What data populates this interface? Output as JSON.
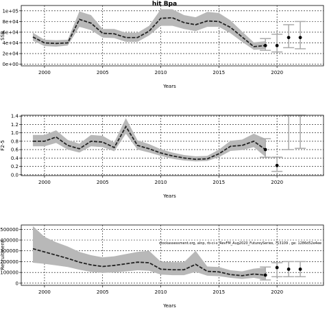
{
  "figure_title": "hit Bpa",
  "overlay_note": "stockassessment.org, alnp, rb-ci-x_RevFM_Aug2020_FutureySeries, ?13109 , ge: 1286d52e4ee",
  "colors": {
    "ribbon": "#b8b8b8",
    "line": "#222222",
    "ci_bar": "#aaaaaa",
    "point": "#000000",
    "grid": "#000000"
  },
  "chart_data": [
    {
      "type": "line",
      "title": "hit Bpa",
      "xlabel": "Years",
      "ylabel": "SSB",
      "xlim": [
        1998,
        2024
      ],
      "ylim": [
        -3000,
        110000
      ],
      "x_ticks": [
        2000,
        2005,
        2010,
        2015,
        2020
      ],
      "y_ticks": [
        0,
        20000,
        40000,
        60000,
        80000,
        100000
      ],
      "y_tick_labels": [
        "0e+00",
        "2e+04",
        "4e+04",
        "6e+04",
        "8e+04",
        "1e+05"
      ],
      "grid": true,
      "x": [
        1999,
        2000,
        2001,
        2002,
        2003,
        2004,
        2005,
        2006,
        2007,
        2008,
        2009,
        2010,
        2011,
        2012,
        2013,
        2014,
        2015,
        2016,
        2017,
        2018,
        2019
      ],
      "estimate": [
        51000,
        40000,
        39000,
        40000,
        84000,
        77000,
        58000,
        57000,
        50000,
        50000,
        62000,
        86000,
        87000,
        78000,
        74000,
        81000,
        80000,
        69000,
        51000,
        33000,
        35000
      ],
      "lower": [
        44000,
        34000,
        33000,
        35000,
        70000,
        64000,
        50000,
        49000,
        42000,
        42000,
        54000,
        72000,
        72000,
        66000,
        62000,
        70000,
        70000,
        58000,
        42000,
        27000,
        28000
      ],
      "upper": [
        59000,
        46000,
        45000,
        46000,
        99000,
        92000,
        66000,
        66000,
        59000,
        59000,
        72000,
        103000,
        103000,
        92000,
        88000,
        98000,
        96000,
        82000,
        61000,
        41000,
        43000
      ],
      "forecast": [
        {
          "x": 2019,
          "value": 35000,
          "lower": 26000,
          "upper": 48000
        },
        {
          "x": 2020,
          "value": 35000,
          "lower": 23000,
          "upper": 56000
        },
        {
          "x": 2021,
          "value": 50000,
          "lower": 31000,
          "upper": 74000
        },
        {
          "x": 2022,
          "value": 50000,
          "lower": 29000,
          "upper": 80000
        }
      ]
    },
    {
      "type": "line",
      "title": "",
      "xlabel": "Years",
      "ylabel": "F2-5",
      "xlim": [
        1998,
        2024
      ],
      "ylim": [
        -0.02,
        1.42
      ],
      "x_ticks": [
        2000,
        2005,
        2010,
        2015,
        2020
      ],
      "y_ticks": [
        0.0,
        0.2,
        0.4,
        0.6,
        0.8,
        1.0,
        1.2,
        1.4
      ],
      "y_tick_labels": [
        "0.0",
        "0.2",
        "0.4",
        "0.6",
        "0.8",
        "1.0",
        "1.2",
        "1.4"
      ],
      "grid": true,
      "x": [
        1999,
        2000,
        2001,
        2002,
        2003,
        2004,
        2005,
        2006,
        2007,
        2008,
        2009,
        2010,
        2011,
        2012,
        2013,
        2014,
        2015,
        2016,
        2017,
        2018,
        2019
      ],
      "estimate": [
        0.8,
        0.8,
        0.9,
        0.7,
        0.62,
        0.8,
        0.78,
        0.65,
        1.15,
        0.7,
        0.62,
        0.52,
        0.45,
        0.4,
        0.37,
        0.38,
        0.5,
        0.68,
        0.7,
        0.8,
        0.6
      ],
      "lower": [
        0.68,
        0.68,
        0.76,
        0.6,
        0.53,
        0.68,
        0.66,
        0.56,
        0.98,
        0.6,
        0.53,
        0.45,
        0.38,
        0.34,
        0.32,
        0.33,
        0.42,
        0.57,
        0.59,
        0.66,
        0.43
      ],
      "upper": [
        0.95,
        0.95,
        1.06,
        0.83,
        0.74,
        0.95,
        0.93,
        0.77,
        1.35,
        0.82,
        0.73,
        0.61,
        0.53,
        0.47,
        0.44,
        0.45,
        0.6,
        0.81,
        0.84,
        0.98,
        0.86
      ],
      "forecast": [
        {
          "x": 2019,
          "value": 0.6,
          "lower": 0.42,
          "upper": 0.86
        },
        {
          "x": 2020,
          "value": 0.22,
          "lower": 0.08,
          "upper": 0.42
        },
        {
          "x": 2021,
          "value": null,
          "lower": 0.6,
          "upper": 1.42
        },
        {
          "x": 2022,
          "value": null,
          "lower": 0.63,
          "upper": 1.42
        }
      ]
    },
    {
      "type": "line",
      "title": "",
      "xlabel": "Years",
      "ylabel": "Recruitment",
      "xlim": [
        1998,
        2024
      ],
      "ylim": [
        -20000,
        540000
      ],
      "x_ticks": [
        2000,
        2005,
        2010,
        2015,
        2020
      ],
      "y_ticks": [
        0,
        100000,
        200000,
        300000,
        400000,
        500000
      ],
      "y_tick_labels": [
        "0",
        "100000",
        "200000",
        "300000",
        "400000",
        "500000"
      ],
      "grid": true,
      "x": [
        1999,
        2000,
        2001,
        2002,
        2003,
        2004,
        2005,
        2006,
        2007,
        2008,
        2009,
        2010,
        2011,
        2012,
        2013,
        2014,
        2015,
        2016,
        2017,
        2018,
        2019
      ],
      "estimate": [
        320000,
        290000,
        260000,
        230000,
        195000,
        170000,
        155000,
        165000,
        180000,
        195000,
        190000,
        130000,
        125000,
        125000,
        175000,
        110000,
        105000,
        80000,
        70000,
        85000,
        75000
      ],
      "lower": [
        190000,
        180000,
        165000,
        150000,
        125000,
        105000,
        95000,
        100000,
        110000,
        120000,
        115000,
        80000,
        75000,
        75000,
        105000,
        70000,
        65000,
        50000,
        40000,
        50000,
        30000
      ],
      "upper": [
        530000,
        430000,
        380000,
        340000,
        290000,
        260000,
        240000,
        250000,
        270000,
        290000,
        300000,
        200000,
        195000,
        195000,
        300000,
        155000,
        150000,
        120000,
        110000,
        135000,
        145000
      ],
      "forecast": [
        {
          "x": 2019,
          "value": 75000,
          "lower": 30000,
          "upper": 150000
        },
        {
          "x": 2020,
          "value": 145000,
          "lower": 60000,
          "upper": 190000
        },
        {
          "x": 2021,
          "value": 130000,
          "lower": 60000,
          "upper": 200000
        },
        {
          "x": 2022,
          "value": 130000,
          "lower": 60000,
          "upper": 200000
        }
      ]
    }
  ]
}
